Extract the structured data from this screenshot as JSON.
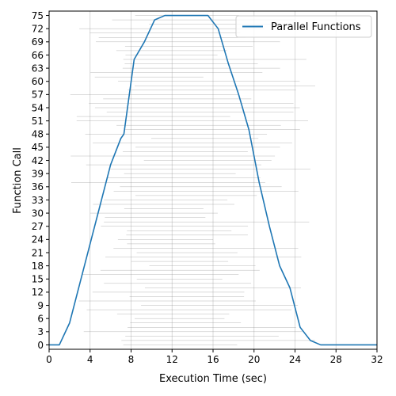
{
  "chart_data": {
    "type": "line",
    "title": "",
    "xlabel": "Execution Time (sec)",
    "ylabel": "Function Call",
    "xlim": [
      0,
      32
    ],
    "ylim": [
      -1,
      76
    ],
    "x_ticks": [
      0,
      4,
      8,
      12,
      16,
      20,
      24,
      28,
      32
    ],
    "y_ticks": [
      0,
      3,
      6,
      9,
      12,
      15,
      18,
      21,
      24,
      27,
      30,
      33,
      36,
      39,
      42,
      45,
      48,
      51,
      54,
      57,
      60,
      63,
      66,
      69,
      72,
      75
    ],
    "grid": "x-only",
    "legend_position": "upper-right",
    "series": [
      {
        "name": "Parallel Functions",
        "color": "#1f77b4",
        "x": [
          0,
          1,
          2,
          3,
          4,
          5,
          6,
          7,
          7.3,
          8.3,
          9.3,
          10.3,
          11.3,
          12.3,
          13.3,
          14.3,
          15.5,
          16.5,
          17.5,
          18.5,
          19.5,
          20.5,
          21.5,
          22.5,
          23.5,
          24.5,
          25.5,
          26.5,
          27.5,
          28.5,
          32
        ],
        "y": [
          0,
          0,
          5,
          14,
          23,
          32,
          41,
          47,
          48,
          65,
          69,
          74,
          75,
          75,
          75,
          75,
          75,
          72,
          64,
          57,
          49,
          37,
          27,
          18,
          13,
          4,
          1,
          0,
          0,
          0,
          0
        ]
      }
    ],
    "background_segments": {
      "color": "#888888",
      "y_start": 0,
      "y_end": 75,
      "x_start_range": [
        2,
        10
      ],
      "x_end_range": [
        15,
        26
      ]
    }
  }
}
